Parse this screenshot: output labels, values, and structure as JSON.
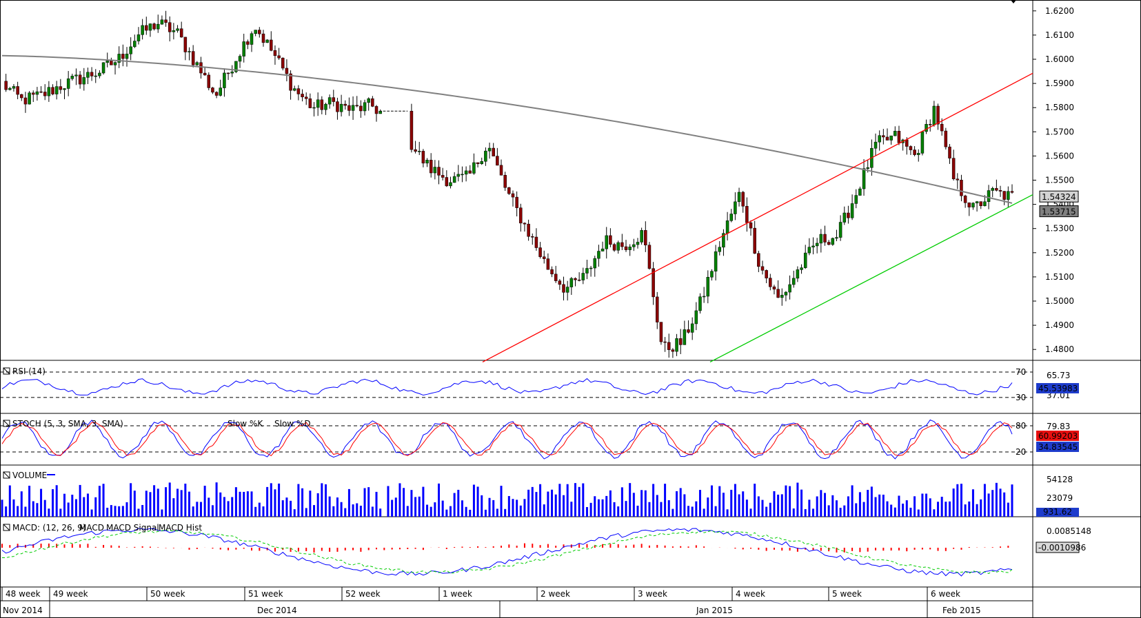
{
  "chart_data": [
    {
      "type": "candlestick",
      "panel": "price",
      "yticks": [
        "1.6200",
        "1.6100",
        "1.6000",
        "1.5900",
        "1.5800",
        "1.5700",
        "1.5600",
        "1.5500",
        "1.5400",
        "1.5300",
        "1.5200",
        "1.5100",
        "1.5000",
        "1.4900",
        "1.4800"
      ],
      "last_price_label": "1.54324",
      "ma_price_label": "1.53715",
      "ylim": [
        1.4755,
        1.6245
      ],
      "moving_average_color": "#808080",
      "trendlines": [
        {
          "color": "#ff0000",
          "from": [
            "Dec 2014 (52 week end)",
            1.4748
          ],
          "to": [
            "Feb 2015 (end)",
            1.5942
          ]
        },
        {
          "color": "#00cc00",
          "from": [
            "Jan 2015 (3 week end)",
            1.4748
          ],
          "to": [
            "Feb 2015 (end)",
            1.544
          ]
        }
      ],
      "ohlc_anchor_closes": [
        1.59,
        1.583,
        1.585,
        1.589,
        1.592,
        1.595,
        1.6,
        1.61,
        1.615,
        1.611,
        1.598,
        1.585,
        1.6,
        1.614,
        1.602,
        1.588,
        1.58,
        1.582,
        1.579,
        1.581,
        1.575,
        1.565,
        1.555,
        1.55,
        1.551,
        1.565,
        1.545,
        1.53,
        1.515,
        1.505,
        1.51,
        1.525,
        1.523,
        1.528,
        1.48,
        1.483,
        1.5,
        1.525,
        1.545,
        1.515,
        1.5,
        1.513,
        1.525,
        1.527,
        1.545,
        1.565,
        1.568,
        1.56,
        1.58,
        1.55,
        1.538,
        1.545,
        1.543
      ]
    },
    {
      "type": "line",
      "panel": "RSI",
      "label": "RSI (14)",
      "yticks_printed": [
        "70",
        "30"
      ],
      "right_labels": [
        "65.73",
        "45.53983",
        "37.01"
      ],
      "ylim": [
        0,
        100
      ]
    },
    {
      "type": "line",
      "panel": "STOCH",
      "label": "STOCH (5, 3, SMA, 3, SMA)",
      "series": [
        {
          "name": "Slow %K",
          "color": "#0000ff"
        },
        {
          "name": "Slow %D",
          "color": "#ff0000"
        }
      ],
      "yticks_printed": [
        "80",
        "20"
      ],
      "right_labels": [
        "79.83",
        "60.99203",
        "34.83545"
      ],
      "ylim": [
        0,
        100
      ]
    },
    {
      "type": "bar",
      "panel": "VOLUME",
      "label": "VOLUME",
      "yticks": [
        "54128",
        "23079"
      ],
      "right_label": "931.62"
    },
    {
      "type": "line",
      "panel": "MACD",
      "label": "MACD: (12, 26, 9)",
      "series": [
        {
          "name": "MACD",
          "color": "#0000ff"
        },
        {
          "name": "MACD Signal",
          "color": "#00cc00"
        },
        {
          "name": "MACD Hist",
          "color": "#ff0000"
        }
      ],
      "yticks": [
        "0.0085148"
      ],
      "right_label": "-0.0010986"
    }
  ],
  "x_axis": {
    "weeks": [
      "48 week",
      "49 week",
      "50 week",
      "51 week",
      "52 week",
      "1 week",
      "2 week",
      "3 week",
      "4 week",
      "5 week",
      "6 week"
    ],
    "months": [
      "Nov 2014",
      "Dec 2014",
      "Jan 2015",
      "Feb 2015"
    ]
  },
  "colors": {
    "bull": "#008000",
    "bear": "#8b0000",
    "rsi": "#0000ff",
    "volume": "#0000ff",
    "macd_hist": "#ff0000",
    "red_line": "#ff0000",
    "green_line": "#00cc00"
  }
}
